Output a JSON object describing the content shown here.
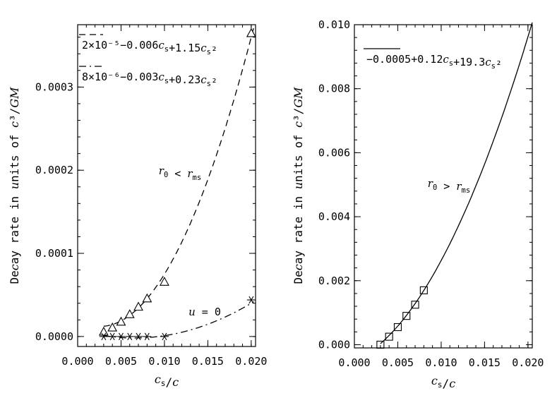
{
  "chart_data": [
    {
      "type": "scatter",
      "xlabel": "c_s/c",
      "ylabel": "Decay rate in units of c³/GM",
      "xlim": [
        0.0,
        0.0205
      ],
      "ylim": [
        -1.2e-05,
        0.000375
      ],
      "xticks": [
        0.0,
        0.005,
        0.01,
        0.015,
        0.02
      ],
      "xtick_labels": [
        "0.000",
        "0.005",
        "0.010",
        "0.015",
        "0.020"
      ],
      "yticks": [
        0.0,
        0.0001,
        0.0002,
        0.0003
      ],
      "ytick_labels": [
        "0.0000",
        "0.0001",
        "0.0002",
        "0.0003"
      ],
      "legend_position": "top-left",
      "legend": [
        {
          "style": "dashed",
          "label": "2×10⁻⁵−0.006c_s+1.15c_s²"
        },
        {
          "style": "dash-dot",
          "label": "8×10⁻⁶−0.003c_s+0.23c_s²"
        }
      ],
      "curves": [
        {
          "style": "dashed",
          "coef": [
            2e-05,
            -0.006,
            1.15
          ],
          "x_range": [
            0.003,
            0.0203
          ]
        },
        {
          "style": "dash-dot",
          "coef": [
            8e-06,
            -0.003,
            0.23
          ],
          "x_range": [
            0.003,
            0.0203
          ]
        }
      ],
      "series": [
        {
          "marker": "triangle",
          "x": [
            0.003,
            0.004,
            0.005,
            0.006,
            0.007,
            0.008,
            0.01,
            0.02
          ],
          "y": [
            5e-06,
            1e-05,
            1.7e-05,
            2.6e-05,
            3.5e-05,
            4.5e-05,
            6.5e-05,
            0.000364
          ]
        },
        {
          "marker": "asterisk",
          "x": [
            0.003,
            0.004,
            0.005,
            0.006,
            0.007,
            0.008,
            0.01,
            0.02
          ],
          "y": [
            0.0,
            0.0,
            0.0,
            0.0,
            0.0,
            0.0,
            0.0,
            4.4e-05
          ]
        }
      ],
      "annotations": [
        {
          "label": "r_0 < r_ms"
        },
        {
          "label": "u = 0"
        }
      ]
    },
    {
      "type": "scatter",
      "xlabel": "c_s/c",
      "ylabel": "Decay rate in units of c³/GM",
      "xlim": [
        0.0,
        0.0205
      ],
      "ylim": [
        -0.0001,
        0.01
      ],
      "xticks": [
        0.0,
        0.005,
        0.01,
        0.015,
        0.02
      ],
      "xtick_labels": [
        "0.000",
        "0.005",
        "0.010",
        "0.015",
        "0.020"
      ],
      "yticks": [
        0.0,
        0.002,
        0.004,
        0.006,
        0.008,
        0.01
      ],
      "ytick_labels": [
        "0.000",
        "0.002",
        "0.004",
        "0.006",
        "0.008",
        "0.010"
      ],
      "legend_position": "top-left",
      "legend": [
        {
          "style": "solid",
          "label": "−0.0005+0.12c_s+19.3c_s²"
        }
      ],
      "curves": [
        {
          "style": "solid",
          "coef": [
            -0.0005,
            0.12,
            19.3
          ],
          "x_range": [
            0.003,
            0.0205
          ]
        }
      ],
      "series": [
        {
          "marker": "square",
          "x": [
            0.003,
            0.004,
            0.005,
            0.006,
            0.007,
            0.008
          ],
          "y": [
            0.0,
            0.00025,
            0.00055,
            0.0009,
            0.00125,
            0.0017
          ]
        }
      ],
      "annotations": [
        {
          "label": "r_0 > r_ms"
        }
      ]
    }
  ]
}
